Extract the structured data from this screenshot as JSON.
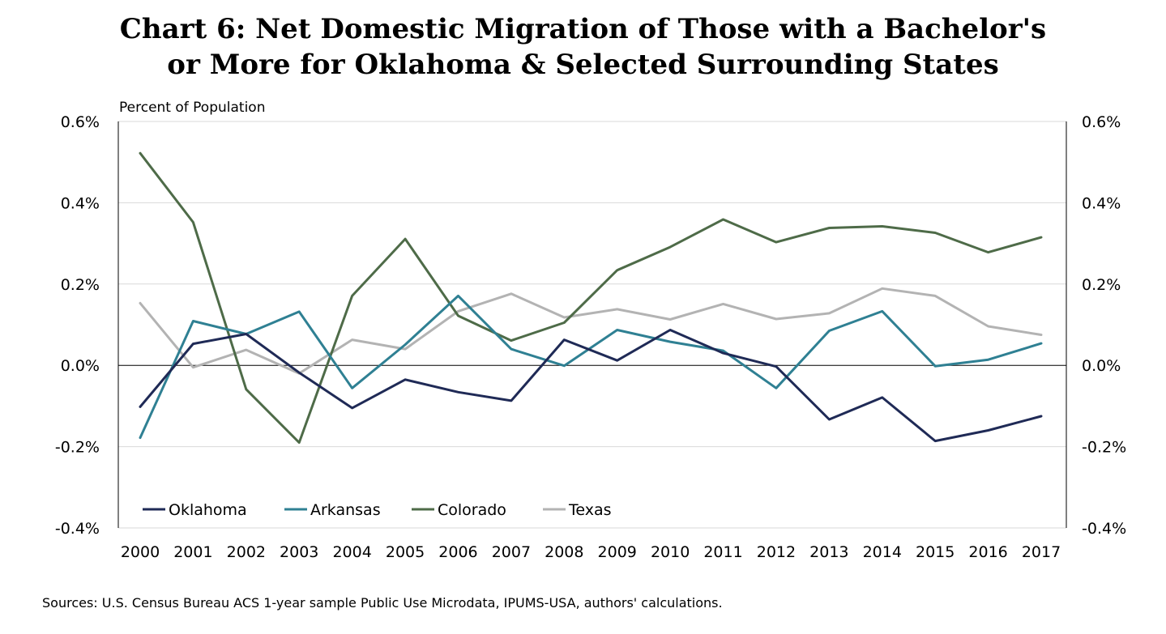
{
  "chart_data": {
    "type": "line",
    "title_line1": "Chart 6: Net Domestic Migration of Those with a Bachelor's",
    "title_line2": "or More for Oklahoma & Selected Surrounding States",
    "ylabel": "Percent of Population",
    "xlabel": "",
    "ylim": [
      -0.4,
      0.6
    ],
    "yticks": [
      -0.4,
      -0.2,
      0.0,
      0.2,
      0.4,
      0.6
    ],
    "ytick_labels": [
      "-0.4%",
      "-0.2%",
      "0.0%",
      "0.2%",
      "0.4%",
      "0.6%"
    ],
    "grid": true,
    "legend_position": "bottom-left",
    "categories": [
      "2000",
      "2001",
      "2002",
      "2003",
      "2004",
      "2005",
      "2006",
      "2007",
      "2008",
      "2009",
      "2010",
      "2011",
      "2012",
      "2013",
      "2014",
      "2015",
      "2016",
      "2017"
    ],
    "series": [
      {
        "name": "Oklahoma",
        "color": "#1f2a56",
        "values": [
          -0.102,
          0.053,
          0.077,
          -0.018,
          -0.105,
          -0.035,
          -0.066,
          -0.087,
          0.063,
          0.012,
          0.087,
          0.03,
          -0.003,
          -0.133,
          -0.079,
          -0.186,
          -0.16,
          -0.125
        ]
      },
      {
        "name": "Arkansas",
        "color": "#2f8093",
        "values": [
          -0.178,
          0.109,
          0.077,
          0.132,
          -0.056,
          0.051,
          0.171,
          0.04,
          -0.001,
          0.087,
          0.058,
          0.036,
          -0.056,
          0.085,
          0.133,
          -0.002,
          0.014,
          0.054
        ]
      },
      {
        "name": "Colorado",
        "color": "#4e6b48",
        "values": [
          0.522,
          0.352,
          -0.059,
          -0.19,
          0.171,
          0.311,
          0.122,
          0.061,
          0.105,
          0.234,
          0.291,
          0.359,
          0.303,
          0.338,
          0.342,
          0.326,
          0.278,
          0.315
        ]
      },
      {
        "name": "Texas",
        "color": "#b3b3b3",
        "values": [
          0.153,
          -0.005,
          0.038,
          -0.02,
          0.063,
          0.04,
          0.133,
          0.176,
          0.118,
          0.138,
          0.113,
          0.151,
          0.114,
          0.128,
          0.189,
          0.171,
          0.096,
          0.075
        ]
      }
    ]
  },
  "footer": {
    "source": "Sources: U.S. Census Bureau ACS 1-year sample Public Use Microdata, IPUMS-USA, authors' calculations."
  }
}
